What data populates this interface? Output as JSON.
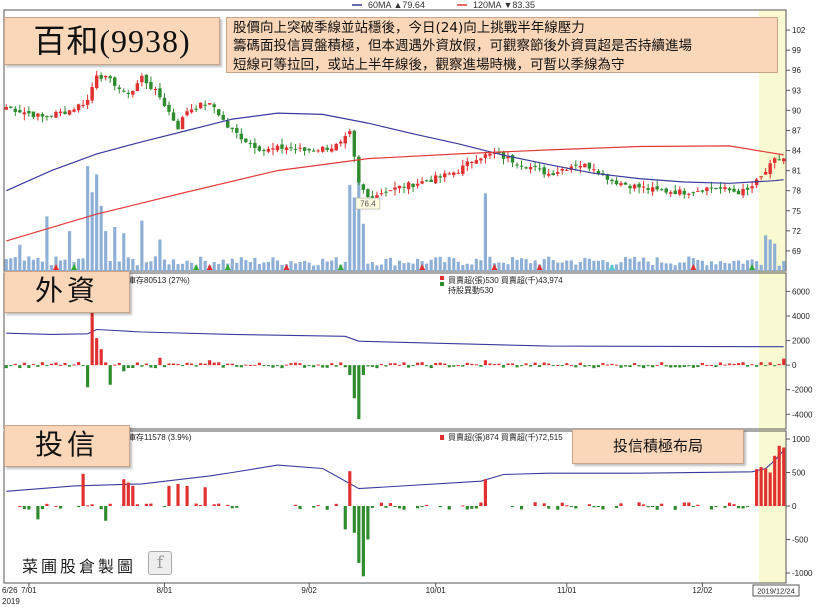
{
  "stock_title": "百和(9938)",
  "commentary": {
    "line1": "股價向上突破季線並站穩後，今日(24)向上挑戰半年線壓力",
    "line2": "籌碼面投信買盤積極，但本週遇外資放假，可觀察節後外資買超是否持續進場",
    "line3": "短線可等拉回，或站上半年線後，觀察進場時機，可暫以季線為守"
  },
  "legend": {
    "ma60": "60MA ▲79.64",
    "ma120": "120MA ▼83.35"
  },
  "panel_labels": {
    "foreign": "外資",
    "trust": "投信"
  },
  "foreign_info": {
    "inventory": "庫存80513 (27%)",
    "netbuy": "買賣超(張)530 買賣超(千)43,974",
    "holding_change": "持股異動530"
  },
  "trust_info": {
    "inventory": "庫存11578 (3.9%)",
    "netbuy": "買賣超(張)874 買賣超(千)72,515"
  },
  "trust_note": "投信積極布局",
  "watermark": "菜圃股倉製圖",
  "colors": {
    "ma60": "#3b3b9e",
    "ma120": "#e23b3b",
    "up": "#e03030",
    "down": "#2e8b2e",
    "volume": "#8fb0d6",
    "highlight": "#fafad2"
  },
  "chart_data": {
    "type": "candlestick",
    "x_ticks": [
      "6/26",
      "7/01",
      "8/01",
      "9/02",
      "10/01",
      "11/01",
      "12/02"
    ],
    "x_year": "2019",
    "last_date": "2019/12/24",
    "price_ylim": [
      66,
      105
    ],
    "price_ticks": [
      102,
      99,
      96,
      93,
      90,
      87,
      84,
      81,
      78,
      75,
      72,
      69
    ],
    "annotations": {
      "high": "96.8",
      "low": "76.4"
    },
    "anchors": [
      [
        0,
        90.5
      ],
      [
        8,
        89
      ],
      [
        14,
        90
      ],
      [
        18,
        91.5
      ],
      [
        20,
        95.5
      ],
      [
        24,
        94
      ],
      [
        26,
        92.5
      ],
      [
        28,
        93
      ],
      [
        30,
        95
      ],
      [
        34,
        92
      ],
      [
        38,
        87.5
      ],
      [
        40,
        90
      ],
      [
        44,
        91
      ],
      [
        46,
        90.5
      ],
      [
        49,
        87.5
      ],
      [
        53,
        85.5
      ],
      [
        57,
        84
      ],
      [
        62,
        84.5
      ],
      [
        66,
        84
      ],
      [
        72,
        84.5
      ],
      [
        74,
        85
      ],
      [
        76,
        86.5
      ],
      [
        78,
        79
      ],
      [
        80,
        77
      ],
      [
        84,
        78
      ],
      [
        90,
        79
      ],
      [
        96,
        80
      ],
      [
        100,
        81
      ],
      [
        104,
        83
      ],
      [
        108,
        83.5
      ],
      [
        114,
        82
      ],
      [
        120,
        80.5
      ],
      [
        126,
        82
      ],
      [
        130,
        81.5
      ],
      [
        134,
        79.5
      ],
      [
        138,
        78.8
      ],
      [
        144,
        78
      ],
      [
        150,
        77.8
      ],
      [
        156,
        78.5
      ],
      [
        162,
        77.8
      ],
      [
        164,
        78
      ],
      [
        167,
        80
      ],
      [
        170,
        82.5
      ],
      [
        172,
        82.8
      ]
    ],
    "ma60_pts": [
      [
        0,
        78
      ],
      [
        10,
        81
      ],
      [
        20,
        83.5
      ],
      [
        30,
        85.3
      ],
      [
        40,
        87
      ],
      [
        50,
        88.7
      ],
      [
        60,
        89.6
      ],
      [
        70,
        89.4
      ],
      [
        80,
        88.1
      ],
      [
        90,
        86.5
      ],
      [
        100,
        85
      ],
      [
        110,
        83.3
      ],
      [
        120,
        81.9
      ],
      [
        130,
        80.6
      ],
      [
        140,
        79.8
      ],
      [
        150,
        79.3
      ],
      [
        160,
        79.1
      ],
      [
        170,
        79.5
      ],
      [
        172,
        79.64
      ]
    ],
    "ma120_pts": [
      [
        0,
        70.5
      ],
      [
        20,
        74.5
      ],
      [
        40,
        77.8
      ],
      [
        60,
        81
      ],
      [
        80,
        82.8
      ],
      [
        100,
        83.5
      ],
      [
        120,
        84.1
      ],
      [
        140,
        84.6
      ],
      [
        160,
        84.7
      ],
      [
        172,
        83.35
      ]
    ],
    "volume_spikes": {
      "3": 0.25,
      "9": 0.52,
      "14": 0.38,
      "18": 1.0,
      "19": 0.75,
      "20": 0.92,
      "21": 0.62,
      "22": 0.38,
      "24": 0.42,
      "26": 0.36,
      "30": 0.48,
      "34": 0.3,
      "76": 0.82,
      "77": 0.7,
      "78": 0.95,
      "79": 0.45,
      "106": 0.74,
      "168": 0.34,
      "169": 0.3,
      "170": 0.26
    },
    "foreign_ylim": [
      -5200,
      7500
    ],
    "foreign_ticks": [
      6000,
      4000,
      2000,
      0,
      -2000,
      -4000
    ],
    "foreign_inventory_line": [
      [
        0,
        2600
      ],
      [
        10,
        2500
      ],
      [
        18,
        2550
      ],
      [
        20,
        2900
      ],
      [
        30,
        2700
      ],
      [
        50,
        2500
      ],
      [
        75,
        2350
      ],
      [
        78,
        1950
      ],
      [
        120,
        1550
      ],
      [
        172,
        1500
      ]
    ],
    "foreign_spikes": {
      "18": -1800,
      "19": 4400,
      "20": 2200,
      "21": 1300,
      "23": -1600,
      "26": -500,
      "34": 600,
      "45": 400,
      "76": -800,
      "77": -2700,
      "78": -4400,
      "79": -800,
      "106": 400,
      "172": 530
    },
    "trust_ylim": [
      -1150,
      1120
    ],
    "trust_ticks": [
      1000,
      500,
      0,
      -500,
      -1000
    ],
    "trust_inventory_line": [
      [
        0,
        220
      ],
      [
        15,
        300
      ],
      [
        30,
        330
      ],
      [
        45,
        450
      ],
      [
        50,
        500
      ],
      [
        60,
        610
      ],
      [
        70,
        560
      ],
      [
        78,
        260
      ],
      [
        105,
        370
      ],
      [
        110,
        470
      ],
      [
        120,
        490
      ],
      [
        140,
        490
      ],
      [
        165,
        510
      ],
      [
        168,
        560
      ],
      [
        170,
        680
      ],
      [
        172,
        830
      ]
    ],
    "trust_spikes": {
      "7": -200,
      "17": 480,
      "22": -220,
      "26": 400,
      "27": 350,
      "28": 300,
      "36": 300,
      "38": 330,
      "40": 300,
      "44": 280,
      "75": -350,
      "76": 520,
      "77": -400,
      "78": -850,
      "79": -1050,
      "80": -500,
      "106": 400,
      "166": 550,
      "167": 580,
      "168": 560,
      "169": 500,
      "170": 750,
      "171": 900,
      "172": 874
    }
  }
}
